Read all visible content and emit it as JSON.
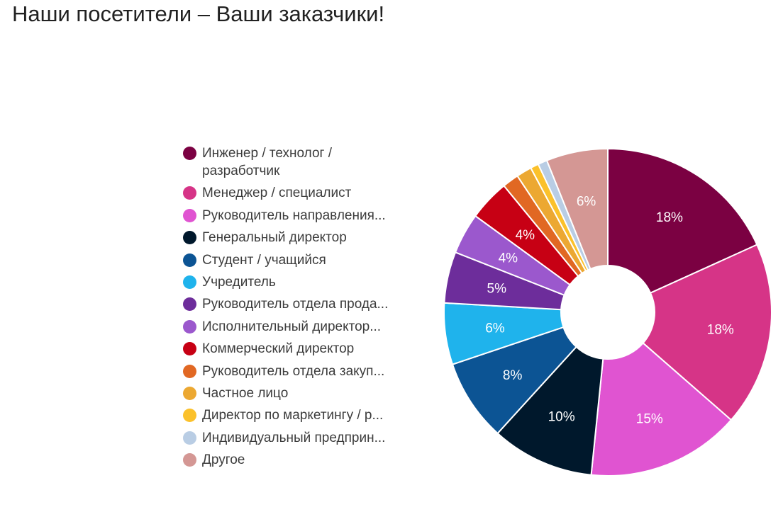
{
  "title": "Наши посетители – Ваши заказчики!",
  "chart_data": {
    "type": "pie",
    "donut": true,
    "legend_position": "left",
    "slices": [
      {
        "name": "Инженер / технолог / разработчик",
        "legend_label": "Инженер / технолог / разработчик",
        "value": 18,
        "label": "18%",
        "color": "#7b0142"
      },
      {
        "name": "Менеджер / специалист",
        "legend_label": "Менеджер / специалист",
        "value": 18,
        "label": "18%",
        "color": "#d63487"
      },
      {
        "name": "Руководитель направления...",
        "legend_label": "Руководитель направления...",
        "value": 15,
        "label": "15%",
        "color": "#e054d1"
      },
      {
        "name": "Генеральный директор",
        "legend_label": "Генеральный директор",
        "value": 10,
        "label": "10%",
        "color": "#00182c"
      },
      {
        "name": "Студент / учащийся",
        "legend_label": "Студент / учащийся",
        "value": 8,
        "label": "8%",
        "color": "#0c5494"
      },
      {
        "name": "Учредитель",
        "legend_label": "Учредитель",
        "value": 6,
        "label": "6%",
        "color": "#1fb3ec"
      },
      {
        "name": "Руководитель отдела продаж",
        "legend_label": "Руководитель отдела прода...",
        "value": 5,
        "label": "5%",
        "color": "#6d2d9b"
      },
      {
        "name": "Исполнительный директор",
        "legend_label": "Исполнительный директор...",
        "value": 4,
        "label": "4%",
        "color": "#9b58cd"
      },
      {
        "name": "Коммерческий директор",
        "legend_label": "Коммерческий директор",
        "value": 4,
        "label": "4%",
        "color": "#c70014"
      },
      {
        "name": "Руководитель отдела закупок",
        "legend_label": "Руководитель отдела закуп...",
        "value": 1.6,
        "label": "",
        "color": "#e16823"
      },
      {
        "name": "Частное лицо",
        "legend_label": "Частное лицо",
        "value": 1.5,
        "label": "",
        "color": "#eca832"
      },
      {
        "name": "Директор по маркетингу / р...",
        "legend_label": "Директор по маркетингу / р...",
        "value": 0.8,
        "label": "",
        "color": "#fbc12b"
      },
      {
        "name": "Индивидуальный предприниматель",
        "legend_label": "Индивидуальный предприн...",
        "value": 0.9,
        "label": "",
        "color": "#b9cde4"
      },
      {
        "name": "Другое",
        "legend_label": "Другое",
        "value": 6,
        "label": "6%",
        "color": "#d49794"
      }
    ]
  }
}
